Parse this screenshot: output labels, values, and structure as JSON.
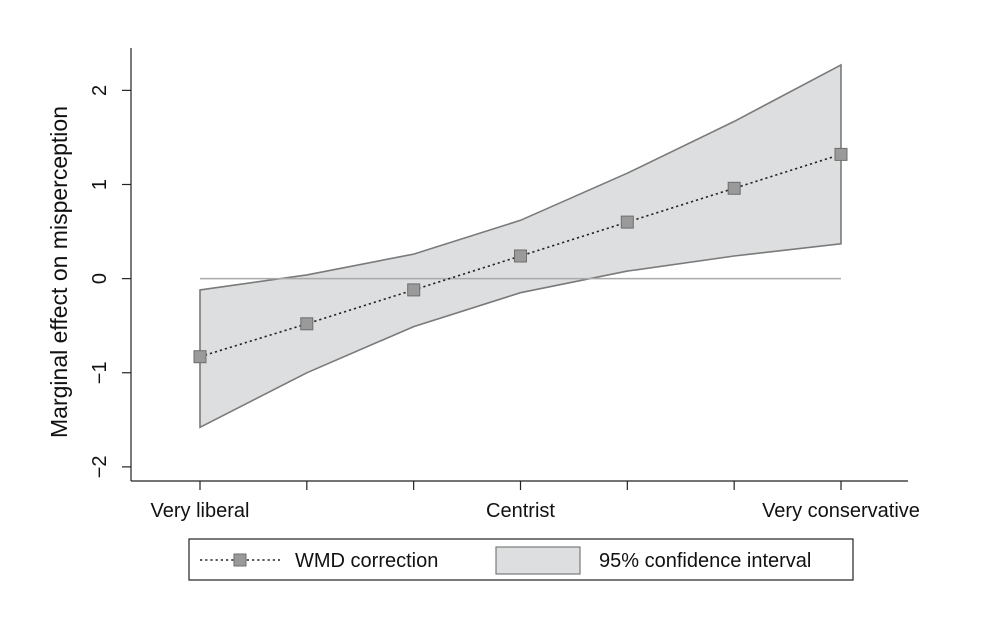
{
  "chart_data": {
    "type": "line",
    "title": "",
    "xlabel": "",
    "ylabel": "Marginal effect on misperception",
    "x": [
      1,
      2,
      3,
      4,
      5,
      6,
      7
    ],
    "xlim": [
      1,
      7
    ],
    "x_tick_positions": [
      1,
      2,
      3,
      4,
      5,
      6,
      7
    ],
    "x_tick_labels": [
      {
        "x": 1,
        "label": "Very liberal"
      },
      {
        "x": 4,
        "label": "Centrist"
      },
      {
        "x": 7,
        "label": "Very conservative"
      }
    ],
    "ylim": [
      -2.15,
      2.45
    ],
    "y_ticks": [
      -2,
      -1,
      0,
      1,
      2
    ],
    "y_tick_labels": [
      "−2",
      "−1",
      "0",
      "1",
      "2"
    ],
    "reference_line_y": 0,
    "series": [
      {
        "name": "WMD correction",
        "style": "dotted line with square markers",
        "values": [
          -0.83,
          -0.48,
          -0.12,
          0.24,
          0.6,
          0.96,
          1.32
        ]
      },
      {
        "name": "95% confidence interval",
        "style": "shaded band",
        "lower": [
          -1.58,
          -1.0,
          -0.51,
          -0.15,
          0.08,
          0.24,
          0.37
        ],
        "upper": [
          -0.12,
          0.04,
          0.26,
          0.62,
          1.12,
          1.67,
          2.27
        ]
      }
    ],
    "grid": false,
    "legend_position": "bottom",
    "colors": {
      "band_fill": "#dddedf",
      "band_edge": "#7a7a7a",
      "line": "#222222",
      "marker_fill": "#9a9a9a",
      "marker_edge": "#6e6e6e",
      "reference_line": "#aaaaaa",
      "axis": "#222222"
    }
  }
}
